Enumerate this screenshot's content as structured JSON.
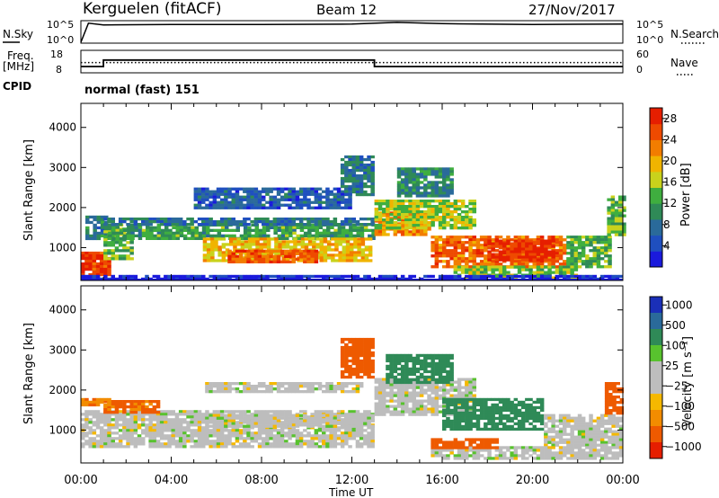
{
  "header": {
    "radar_label": "Kerguelen (fitACF)",
    "beam_label": "Beam 12",
    "date_label": "27/Nov/2017"
  },
  "colors": {
    "power_scale": [
      "#1a1adc",
      "#1f4fbf",
      "#2a6a9a",
      "#2f8a57",
      "#3fae3f",
      "#c9d21c",
      "#f0b400",
      "#f27d00",
      "#ee4a00",
      "#e61e00"
    ],
    "velocity_scale": [
      "#e61e00",
      "#ee5a00",
      "#f28c00",
      "#f5b800",
      "#bdbdbd",
      "#bdbdbd",
      "#58c22e",
      "#2f8a57",
      "#2a6a9a",
      "#1a2fb8"
    ],
    "ground_scatter": "#bdbdbd"
  },
  "chart_data": [
    {
      "type": "line",
      "name": "nsky-nsearch",
      "left_label": "N.Sky",
      "right_label": "N.Search",
      "left_ticks": [
        "10^5",
        "10^0"
      ],
      "right_ticks": [
        "10^5",
        "10^0"
      ],
      "x": [
        "00:00",
        "00:20",
        "01:00",
        "04:00",
        "08:00",
        "12:00",
        "14:00",
        "16:00",
        "20:00",
        "24:00"
      ],
      "nsky_log10": [
        0.0,
        4.6,
        4.2,
        4.3,
        4.3,
        4.4,
        4.8,
        4.5,
        4.3,
        4.4
      ]
    },
    {
      "type": "line",
      "name": "freq-nave",
      "left_label": "Freq.",
      "left_unit": "[MHz]",
      "left_ticks": [
        18,
        8
      ],
      "right_ticks": [
        60,
        0
      ],
      "right_label": "Nave",
      "x": [
        "00:00",
        "01:00",
        "01:00",
        "13:00",
        "13:00",
        "24:00"
      ],
      "freq_mhz": [
        10.5,
        10.5,
        13.5,
        13.5,
        10.5,
        10.5
      ],
      "nave": [
        26,
        26,
        26,
        26,
        26,
        26
      ],
      "cpid_label": "CPID",
      "cpid_text": "normal (fast) 151"
    },
    {
      "type": "heatmap",
      "name": "power",
      "ylabel": "Slant Range [km]",
      "yticks": [
        1000,
        2000,
        3000,
        4000
      ],
      "ylim": [
        180,
        4600
      ],
      "xlim": [
        0,
        24
      ],
      "colorbar_label": "Power [dB]",
      "colorbar_ticks": [
        4,
        8,
        12,
        16,
        20,
        24,
        28
      ],
      "colorbar_range": [
        0,
        30
      ],
      "regions": [
        {
          "t": [
            0.0,
            1.2
          ],
          "r": [
            300,
            900
          ],
          "v": 27
        },
        {
          "t": [
            0.2,
            1.1
          ],
          "r": [
            1200,
            1800
          ],
          "v": 9
        },
        {
          "t": [
            1.0,
            2.3
          ],
          "r": [
            700,
            1500
          ],
          "v": 14
        },
        {
          "t": [
            1.2,
            12.9
          ],
          "r": [
            1250,
            1600
          ],
          "v": 12
        },
        {
          "t": [
            5.4,
            12.9
          ],
          "r": [
            650,
            1250
          ],
          "v": 19
        },
        {
          "t": [
            6.5,
            10.5
          ],
          "r": [
            650,
            950
          ],
          "v": 25
        },
        {
          "t": [
            1.0,
            12.9
          ],
          "r": [
            1550,
            1750
          ],
          "v": 8
        },
        {
          "t": [
            11.5,
            13.0
          ],
          "r": [
            2300,
            3300
          ],
          "v": 8
        },
        {
          "t": [
            13.0,
            15.5
          ],
          "r": [
            1300,
            1900
          ],
          "v": 22
        },
        {
          "t": [
            13.0,
            17.5
          ],
          "r": [
            1500,
            2200
          ],
          "v": 16
        },
        {
          "t": [
            14.0,
            16.5
          ],
          "r": [
            2300,
            3000
          ],
          "v": 10
        },
        {
          "t": [
            15.5,
            21.5
          ],
          "r": [
            500,
            1300
          ],
          "v": 24
        },
        {
          "t": [
            18.0,
            21.0
          ],
          "r": [
            700,
            1200
          ],
          "v": 28
        },
        {
          "t": [
            21.5,
            23.5
          ],
          "r": [
            500,
            1300
          ],
          "v": 13
        },
        {
          "t": [
            23.3,
            24.0
          ],
          "r": [
            1300,
            2300
          ],
          "v": 14
        },
        {
          "t": [
            16.5,
            22.0
          ],
          "r": [
            250,
            550
          ],
          "v": 15
        },
        {
          "t": [
            5.0,
            12.0
          ],
          "r": [
            2000,
            2500
          ],
          "v": 6
        },
        {
          "t": [
            0.0,
            24.0
          ],
          "r": [
            200,
            320
          ],
          "v": 2
        }
      ]
    },
    {
      "type": "heatmap",
      "name": "velocity",
      "ylabel": "Slant Range [km]",
      "yticks": [
        1000,
        2000,
        3000,
        4000
      ],
      "ylim": [
        180,
        4600
      ],
      "xlim": [
        0,
        24
      ],
      "colorbar_label": "Velocity [m s⁻¹]",
      "colorbar_ticks": [
        "1000",
        "500",
        "100",
        "25",
        "−25",
        "−100",
        "−500",
        "−1000"
      ],
      "regions": [
        {
          "t": [
            0.0,
            12.9
          ],
          "r": [
            600,
            1500
          ],
          "v": 0
        },
        {
          "t": [
            1.0,
            3.5
          ],
          "r": [
            1450,
            1750
          ],
          "v": -120
        },
        {
          "t": [
            0.0,
            1.2
          ],
          "r": [
            1600,
            1800
          ],
          "v": -80
        },
        {
          "t": [
            5.5,
            12.9
          ],
          "r": [
            1100,
            1400
          ],
          "v": 0
        },
        {
          "t": [
            5.5,
            12.5
          ],
          "r": [
            1950,
            2200
          ],
          "v": 0
        },
        {
          "t": [
            13.0,
            17.5
          ],
          "r": [
            1400,
            2300
          ],
          "v": 0
        },
        {
          "t": [
            11.5,
            13.0
          ],
          "r": [
            2300,
            3300
          ],
          "v": -200
        },
        {
          "t": [
            13.5,
            16.5
          ],
          "r": [
            2200,
            2900
          ],
          "v": 150
        },
        {
          "t": [
            16.0,
            20.5
          ],
          "r": [
            1000,
            1800
          ],
          "v": 150
        },
        {
          "t": [
            20.5,
            24.0
          ],
          "r": [
            600,
            1400
          ],
          "v": 0
        },
        {
          "t": [
            23.2,
            24.0
          ],
          "r": [
            1400,
            2200
          ],
          "v": -400
        },
        {
          "t": [
            15.5,
            24.0
          ],
          "r": [
            300,
            600
          ],
          "v": 0
        },
        {
          "t": [
            15.5,
            18.5
          ],
          "r": [
            550,
            800
          ],
          "v": -150
        }
      ]
    }
  ],
  "time_axis": {
    "label": "Time UT",
    "ticks": [
      "00:00",
      "04:00",
      "08:00",
      "12:00",
      "16:00",
      "20:00",
      "00:00"
    ]
  },
  "legend_right": {
    "n_search": "N.Search",
    "nave": "Nave"
  }
}
